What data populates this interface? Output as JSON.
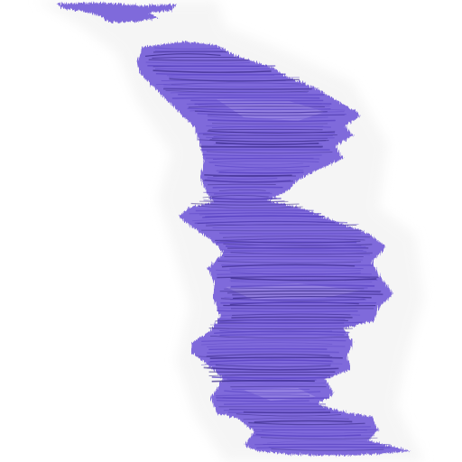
{
  "image": {
    "subject": "scribbled-crayon-band",
    "colors": {
      "background": "#ffffff",
      "halo": "#eeeeee",
      "fill": "#7f6bdb",
      "fill_light": "#9c8ce6",
      "stroke": "#5a44c4",
      "stroke_dark": "#3a2a8a"
    }
  }
}
